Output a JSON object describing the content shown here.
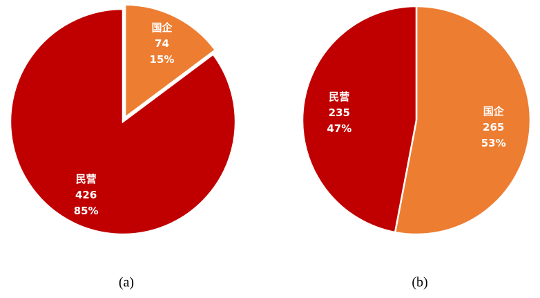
{
  "chart_data": [
    {
      "type": "pie",
      "categories": [
        "国企",
        "民营"
      ],
      "values": [
        74,
        426
      ],
      "percentages": [
        15,
        85
      ],
      "percentage_labels": [
        "15%",
        "85%"
      ],
      "colors": [
        "#ed7d31",
        "#c00000"
      ],
      "caption": "(a)"
    },
    {
      "type": "pie",
      "categories": [
        "国企",
        "民营"
      ],
      "values": [
        265,
        235
      ],
      "percentages": [
        53,
        47
      ],
      "percentage_labels": [
        "53%",
        "47%"
      ],
      "colors": [
        "#ed7d31",
        "#c00000"
      ],
      "caption": "(b)"
    }
  ]
}
